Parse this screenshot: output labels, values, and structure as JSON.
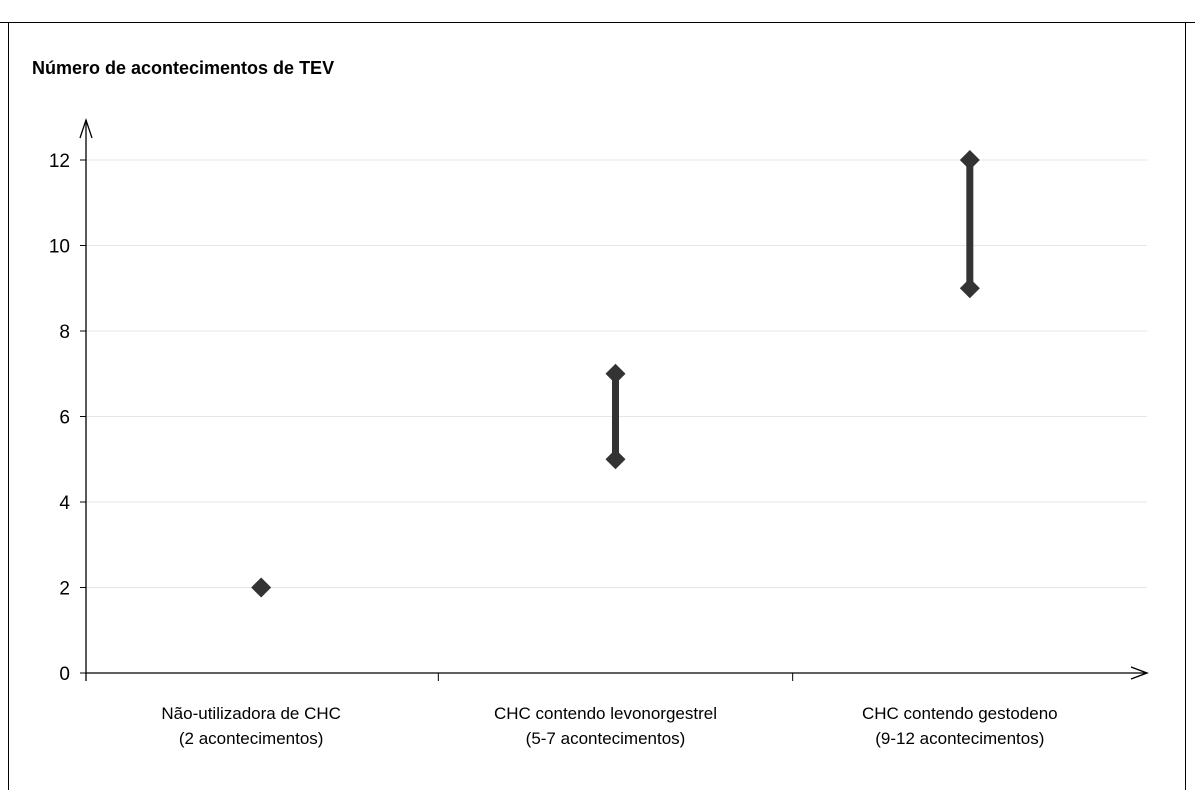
{
  "chart_data": {
    "type": "scatter",
    "ylabel": "Número de acontecimentos de TEV",
    "ylim": [
      0,
      12
    ],
    "yticks": [
      0,
      2,
      4,
      6,
      8,
      10,
      12
    ],
    "grid": true,
    "categories": [
      {
        "label_line1": "Não-utilizadora   de   CHC",
        "label_line2": "(2 acontecimentos)",
        "low": 2,
        "high": 2
      },
      {
        "label_line1": "CHC contendo levonorgestrel",
        "label_line2": "(5-7 acontecimentos)",
        "low": 5,
        "high": 7
      },
      {
        "label_line1": "CHC contendo gestodeno",
        "label_line2": "(9-12 acontecimentos)",
        "low": 9,
        "high": 12
      }
    ],
    "colors": {
      "marker": "#333333",
      "grid": "#e6e6e6",
      "axis": "#000000"
    }
  }
}
